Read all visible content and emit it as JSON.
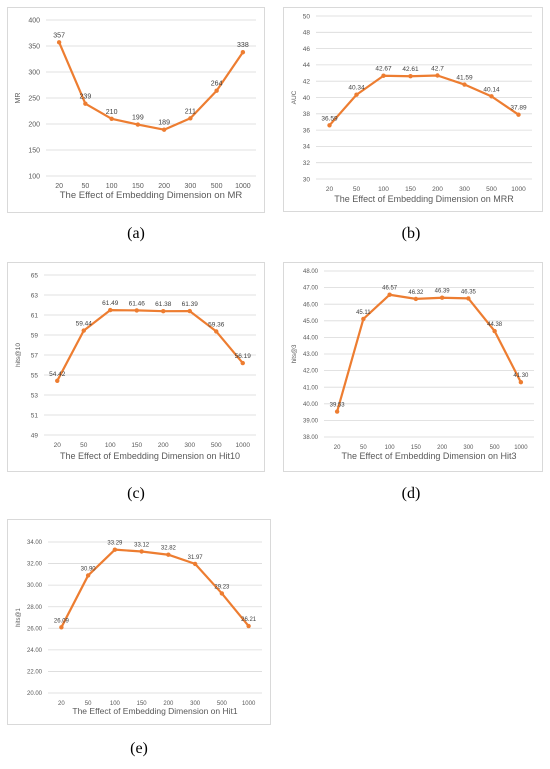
{
  "colors": {
    "line": "#ED7D31",
    "grid": "#d9d9d9",
    "text": "#595959"
  },
  "captions": [
    "(a)",
    "(b)",
    "(c)",
    "(d)",
    "(e)"
  ],
  "chart_data": [
    {
      "type": "line",
      "categories": [
        "20",
        "50",
        "100",
        "150",
        "200",
        "300",
        "500",
        "1000"
      ],
      "values": [
        357,
        239,
        210,
        199,
        189,
        211,
        264,
        338
      ],
      "value_labels": [
        "357",
        "239",
        "210",
        "199",
        "189",
        "211",
        "264",
        "338"
      ],
      "xlabel": "The Effect of Embedding Dimension on MR",
      "ylabel": "MR",
      "ylim": [
        100,
        400
      ],
      "yticks": [
        "100",
        "150",
        "200",
        "250",
        "300",
        "350",
        "400"
      ],
      "grid": true
    },
    {
      "type": "line",
      "categories": [
        "20",
        "50",
        "100",
        "150",
        "200",
        "300",
        "500",
        "1000"
      ],
      "values": [
        36.59,
        40.34,
        42.67,
        42.61,
        42.7,
        41.59,
        40.14,
        37.89
      ],
      "value_labels": [
        "36.59",
        "40.34",
        "42.67",
        "42.61",
        "42.7",
        "41.59",
        "40.14",
        "37.89"
      ],
      "xlabel": "The Effect of Embedding Dimension on MRR",
      "ylabel": "AUC",
      "ylim": [
        30,
        50
      ],
      "yticks": [
        "30",
        "32",
        "34",
        "36",
        "38",
        "40",
        "42",
        "44",
        "46",
        "48",
        "50"
      ],
      "grid": true
    },
    {
      "type": "line",
      "categories": [
        "20",
        "50",
        "100",
        "150",
        "200",
        "300",
        "500",
        "1000"
      ],
      "values": [
        54.42,
        59.44,
        61.49,
        61.46,
        61.38,
        61.39,
        59.36,
        56.19
      ],
      "value_labels": [
        "54.42",
        "59.44",
        "61.49",
        "61.46",
        "61.38",
        "61.39",
        "59.36",
        "56.19"
      ],
      "xlabel": "The Effect of Embedding Dimension on Hit10",
      "ylabel": "hits@10",
      "ylim": [
        49,
        65
      ],
      "yticks": [
        "49",
        "51",
        "53",
        "55",
        "57",
        "59",
        "61",
        "63",
        "65"
      ],
      "grid": true
    },
    {
      "type": "line",
      "categories": [
        "20",
        "50",
        "100",
        "150",
        "200",
        "300",
        "500",
        "1000"
      ],
      "values": [
        39.53,
        45.11,
        46.57,
        46.32,
        46.39,
        46.35,
        44.38,
        41.3
      ],
      "value_labels": [
        "39.53",
        "45.11",
        "46.57",
        "46.32",
        "46.39",
        "46.35",
        "44.38",
        "41.30"
      ],
      "xlabel": "The Effect of Embedding Dimension on Hit3",
      "ylabel": "hits@3",
      "ylim": [
        38,
        48
      ],
      "yticks": [
        "38.00",
        "39.00",
        "40.00",
        "41.00",
        "42.00",
        "43.00",
        "44.00",
        "45.00",
        "46.00",
        "47.00",
        "48.00"
      ],
      "grid": true
    },
    {
      "type": "line",
      "categories": [
        "20",
        "50",
        "100",
        "150",
        "200",
        "300",
        "500",
        "1000"
      ],
      "values": [
        26.09,
        30.9,
        33.29,
        33.12,
        32.82,
        31.97,
        29.23,
        26.21
      ],
      "value_labels": [
        "26.09",
        "30.90",
        "33.29",
        "33.12",
        "32.82",
        "31.97",
        "29.23",
        "26.21"
      ],
      "xlabel": "The Effect of Embedding Dimension on Hit1",
      "ylabel": "hits@1",
      "ylim": [
        20,
        34
      ],
      "yticks": [
        "20.00",
        "22.00",
        "24.00",
        "26.00",
        "28.00",
        "30.00",
        "32.00",
        "34.00"
      ],
      "grid": true
    }
  ]
}
